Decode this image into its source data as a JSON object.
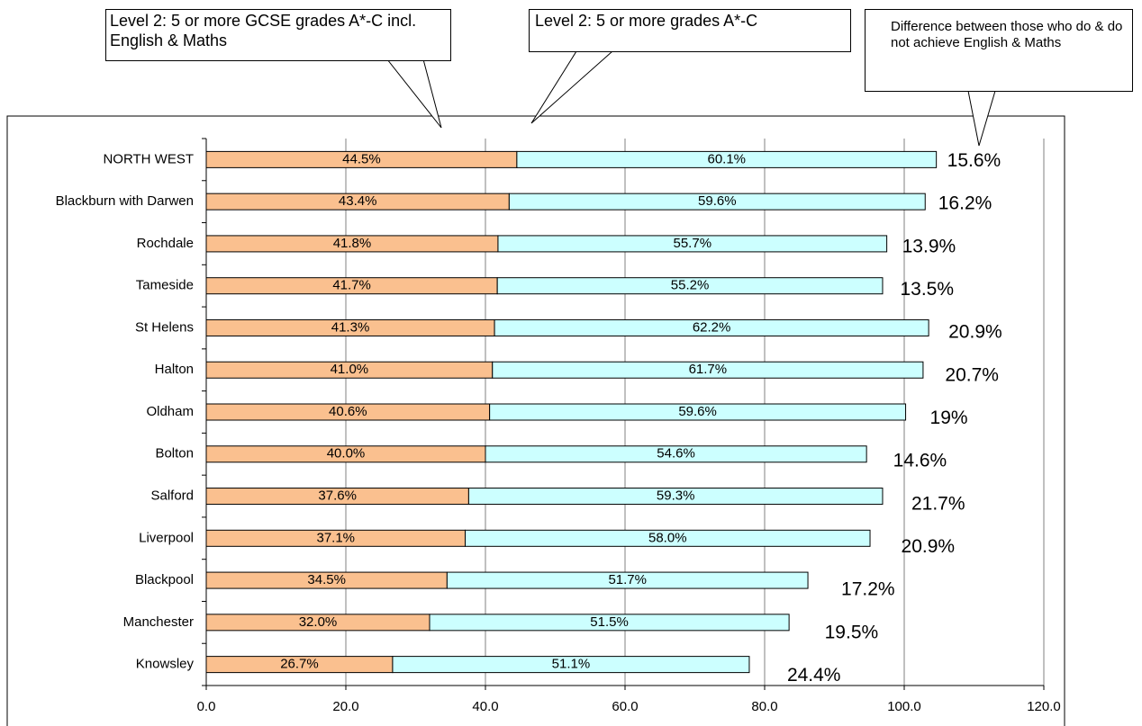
{
  "chart_data": {
    "type": "stacked-bar-horizontal",
    "categories": [
      "NORTH WEST",
      "Blackburn with Darwen",
      "Rochdale",
      "Tameside",
      "St Helens",
      "Halton",
      "Oldham",
      "Bolton",
      "Salford",
      "Liverpool",
      "Blackpool",
      "Manchester",
      "Knowsley"
    ],
    "series": [
      {
        "name": "Level 2: 5 or more GCSE grades A*-C incl. English & Maths",
        "color": "#fac08f",
        "values": [
          44.5,
          43.4,
          41.8,
          41.7,
          41.3,
          41.0,
          40.6,
          40.0,
          37.6,
          37.1,
          34.5,
          32.0,
          26.7
        ],
        "value_labels": [
          "44.5%",
          "43.4%",
          "41.8%",
          "41.7%",
          "41.3%",
          "41.0%",
          "40.6%",
          "40.0%",
          "37.6%",
          "37.1%",
          "34.5%",
          "32.0%",
          "26.7%"
        ]
      },
      {
        "name": "Level 2: 5 or more grades A*-C",
        "color": "#ccffff",
        "values": [
          60.1,
          59.6,
          55.7,
          55.2,
          62.2,
          61.7,
          59.6,
          54.6,
          59.3,
          58.0,
          51.7,
          51.5,
          51.1
        ],
        "value_labels": [
          "60.1%",
          "59.6%",
          "55.7%",
          "55.2%",
          "62.2%",
          "61.7%",
          "59.6%",
          "54.6%",
          "59.3%",
          "58.0%",
          "51.7%",
          "51.5%",
          "51.1%"
        ]
      }
    ],
    "difference_title": "Difference between those who do & do not achieve English & Maths",
    "difference_labels": [
      "15.6%",
      "16.2%",
      "13.9%",
      "13.5%",
      "20.9%",
      "20.7%",
      "19%",
      "14.6%",
      "21.7%",
      "20.9%",
      "17.2%",
      "19.5%",
      "24.4%"
    ],
    "xlim": [
      0,
      120
    ],
    "xticks": [
      {
        "value": 0,
        "label": "0.0"
      },
      {
        "value": 20,
        "label": "20.0"
      },
      {
        "value": 40,
        "label": "40.0"
      },
      {
        "value": 60,
        "label": "60.0"
      },
      {
        "value": 80,
        "label": "80.0"
      },
      {
        "value": 100,
        "label": "100.0"
      },
      {
        "value": 120,
        "label": "120.0"
      }
    ],
    "grid": true
  }
}
